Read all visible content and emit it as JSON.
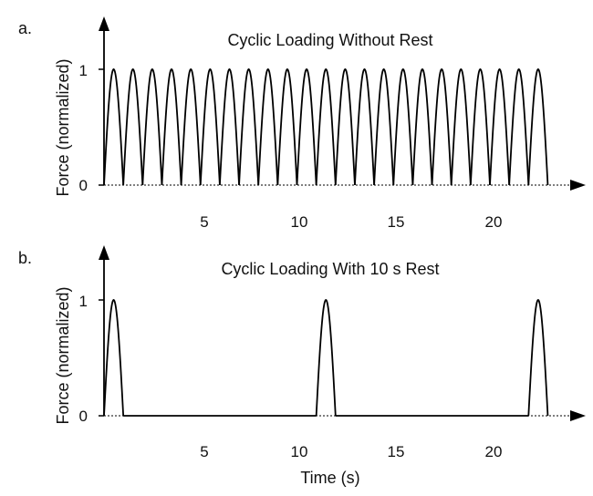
{
  "chart_data": [
    {
      "panel": "a.",
      "type": "line",
      "title": "Cyclic Loading Without Rest",
      "xlabel": "",
      "ylabel": "Force (normalized)",
      "x_ticks": [
        5,
        10,
        15,
        20
      ],
      "y_ticks": [
        0,
        1
      ],
      "xlim": [
        0,
        24
      ],
      "ylim": [
        0,
        1.3
      ],
      "grid": false,
      "series": [
        {
          "peak_times": [
            0.5,
            1.5,
            2.5,
            3.5,
            4.5,
            5.5,
            6.5,
            7.5,
            8.5,
            9.5,
            10.5,
            11.5,
            12.5,
            13.5,
            14.5,
            15.5,
            16.5,
            17.5,
            18.5,
            19.5,
            20.5,
            21.5,
            22.5
          ],
          "pulse_width": 1,
          "peak_value": 1,
          "baseline": 0
        }
      ]
    },
    {
      "panel": "b.",
      "type": "line",
      "title": "Cyclic Loading With 10 s Rest",
      "xlabel": "Time (s)",
      "ylabel": "Force (normalized)",
      "x_ticks": [
        5,
        10,
        15,
        20
      ],
      "y_ticks": [
        0,
        1
      ],
      "xlim": [
        0,
        24
      ],
      "ylim": [
        0,
        1.3
      ],
      "grid": false,
      "series": [
        {
          "peak_times": [
            0.5,
            11.5,
            22.5
          ],
          "pulse_width": 1,
          "peak_value": 1,
          "baseline": 0
        }
      ]
    }
  ]
}
